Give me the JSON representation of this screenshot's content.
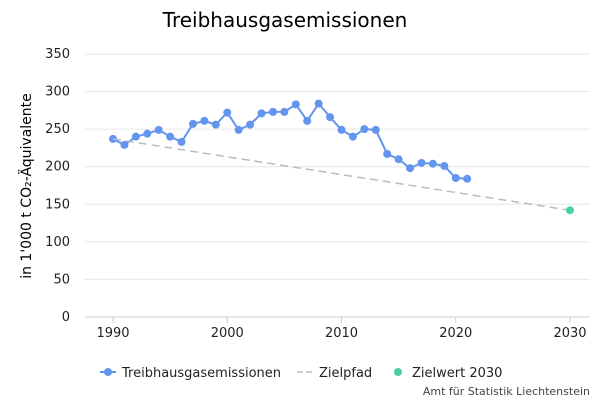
{
  "chart_data": {
    "type": "line",
    "title": "Treibhausgasemissionen",
    "ylabel": "in 1'000 t CO₂-Äquivalente",
    "xlabel": "",
    "xlim": [
      1990,
      2030
    ],
    "ylim": [
      0,
      350
    ],
    "x_ticks": [
      1990,
      2000,
      2010,
      2020,
      2030
    ],
    "y_ticks": [
      0,
      50,
      100,
      150,
      200,
      250,
      300,
      350
    ],
    "grid": true,
    "legend_position": "bottom",
    "series": [
      {
        "name": "Treibhausgasemissionen",
        "style": "line-markers",
        "color": "#6495ed",
        "x": [
          1990,
          1991,
          1992,
          1993,
          1994,
          1995,
          1996,
          1997,
          1998,
          1999,
          2000,
          2001,
          2002,
          2003,
          2004,
          2005,
          2006,
          2007,
          2008,
          2009,
          2010,
          2011,
          2012,
          2013,
          2014,
          2015,
          2016,
          2017,
          2018,
          2019,
          2020,
          2021
        ],
        "y": [
          237,
          229,
          240,
          244,
          249,
          240,
          233,
          257,
          261,
          256,
          272,
          249,
          256,
          271,
          273,
          273,
          283,
          261,
          284,
          266,
          249,
          240,
          250,
          249,
          217,
          210,
          198,
          205,
          204,
          201,
          185,
          184
        ]
      },
      {
        "name": "Zielpfad",
        "style": "dashed",
        "color": "#b2bec3",
        "x": [
          1990,
          2030
        ],
        "y": [
          237,
          142
        ]
      },
      {
        "name": "Zielwert 2030",
        "style": "marker",
        "color": "#48d1a8",
        "x": [
          2030
        ],
        "y": [
          142
        ]
      }
    ]
  },
  "credit": "Amt für Statistik Liechtenstein"
}
